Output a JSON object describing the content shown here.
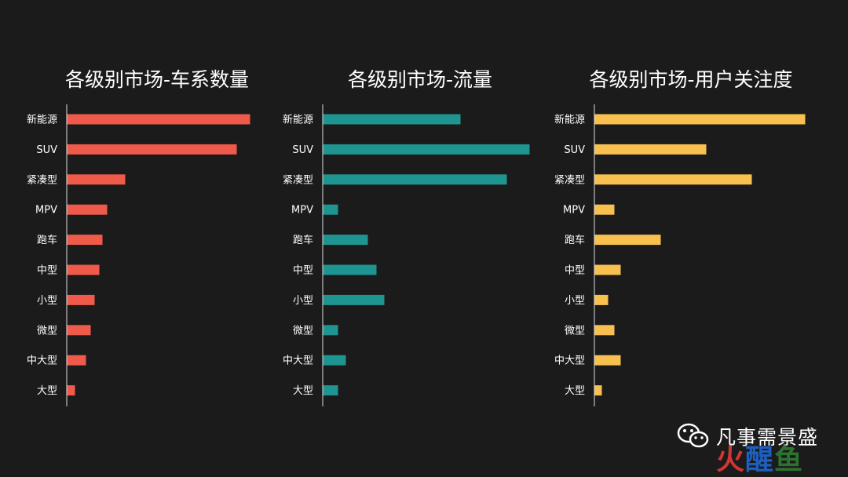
{
  "chart_data": [
    {
      "type": "bar",
      "orientation": "horizontal",
      "title": "各级别市场-车系数量",
      "categories": [
        "新能源",
        "SUV",
        "紧凑型",
        "MPV",
        "跑车",
        "中型",
        "小型",
        "微型",
        "中大型",
        "大型"
      ],
      "values": [
        233,
        216,
        74,
        51,
        45,
        41,
        35,
        30,
        24,
        10
      ],
      "xlim": [
        0,
        240
      ],
      "grid": false,
      "color": "#f05a4a"
    },
    {
      "type": "bar",
      "orientation": "horizontal",
      "title": "各级别市场-流量",
      "categories": [
        "新能源",
        "SUV",
        "紧凑型",
        "MPV",
        "跑车",
        "中型",
        "小型",
        "微型",
        "中大型",
        "大型"
      ],
      "values": [
        175,
        263,
        234,
        19,
        57,
        68,
        78,
        19,
        29,
        19
      ],
      "xlim": [
        0,
        270
      ],
      "grid": false,
      "color": "#1e9590"
    },
    {
      "type": "bar",
      "orientation": "horizontal",
      "title": "各级别市场-用户关注度",
      "categories": [
        "新能源",
        "SUV",
        "紧凑型",
        "MPV",
        "跑车",
        "中型",
        "小型",
        "微型",
        "中大型",
        "大型"
      ],
      "values": [
        268,
        142,
        200,
        25,
        84,
        33,
        17,
        25,
        33,
        9
      ],
      "xlim": [
        0,
        275
      ],
      "grid": false,
      "color": "#f7c04f"
    }
  ],
  "brand": {
    "icon": "wechat-icon",
    "name": "凡事需景盛"
  },
  "watermark": {
    "part1": "火",
    "part2": "醒",
    "part3": "鱼"
  }
}
